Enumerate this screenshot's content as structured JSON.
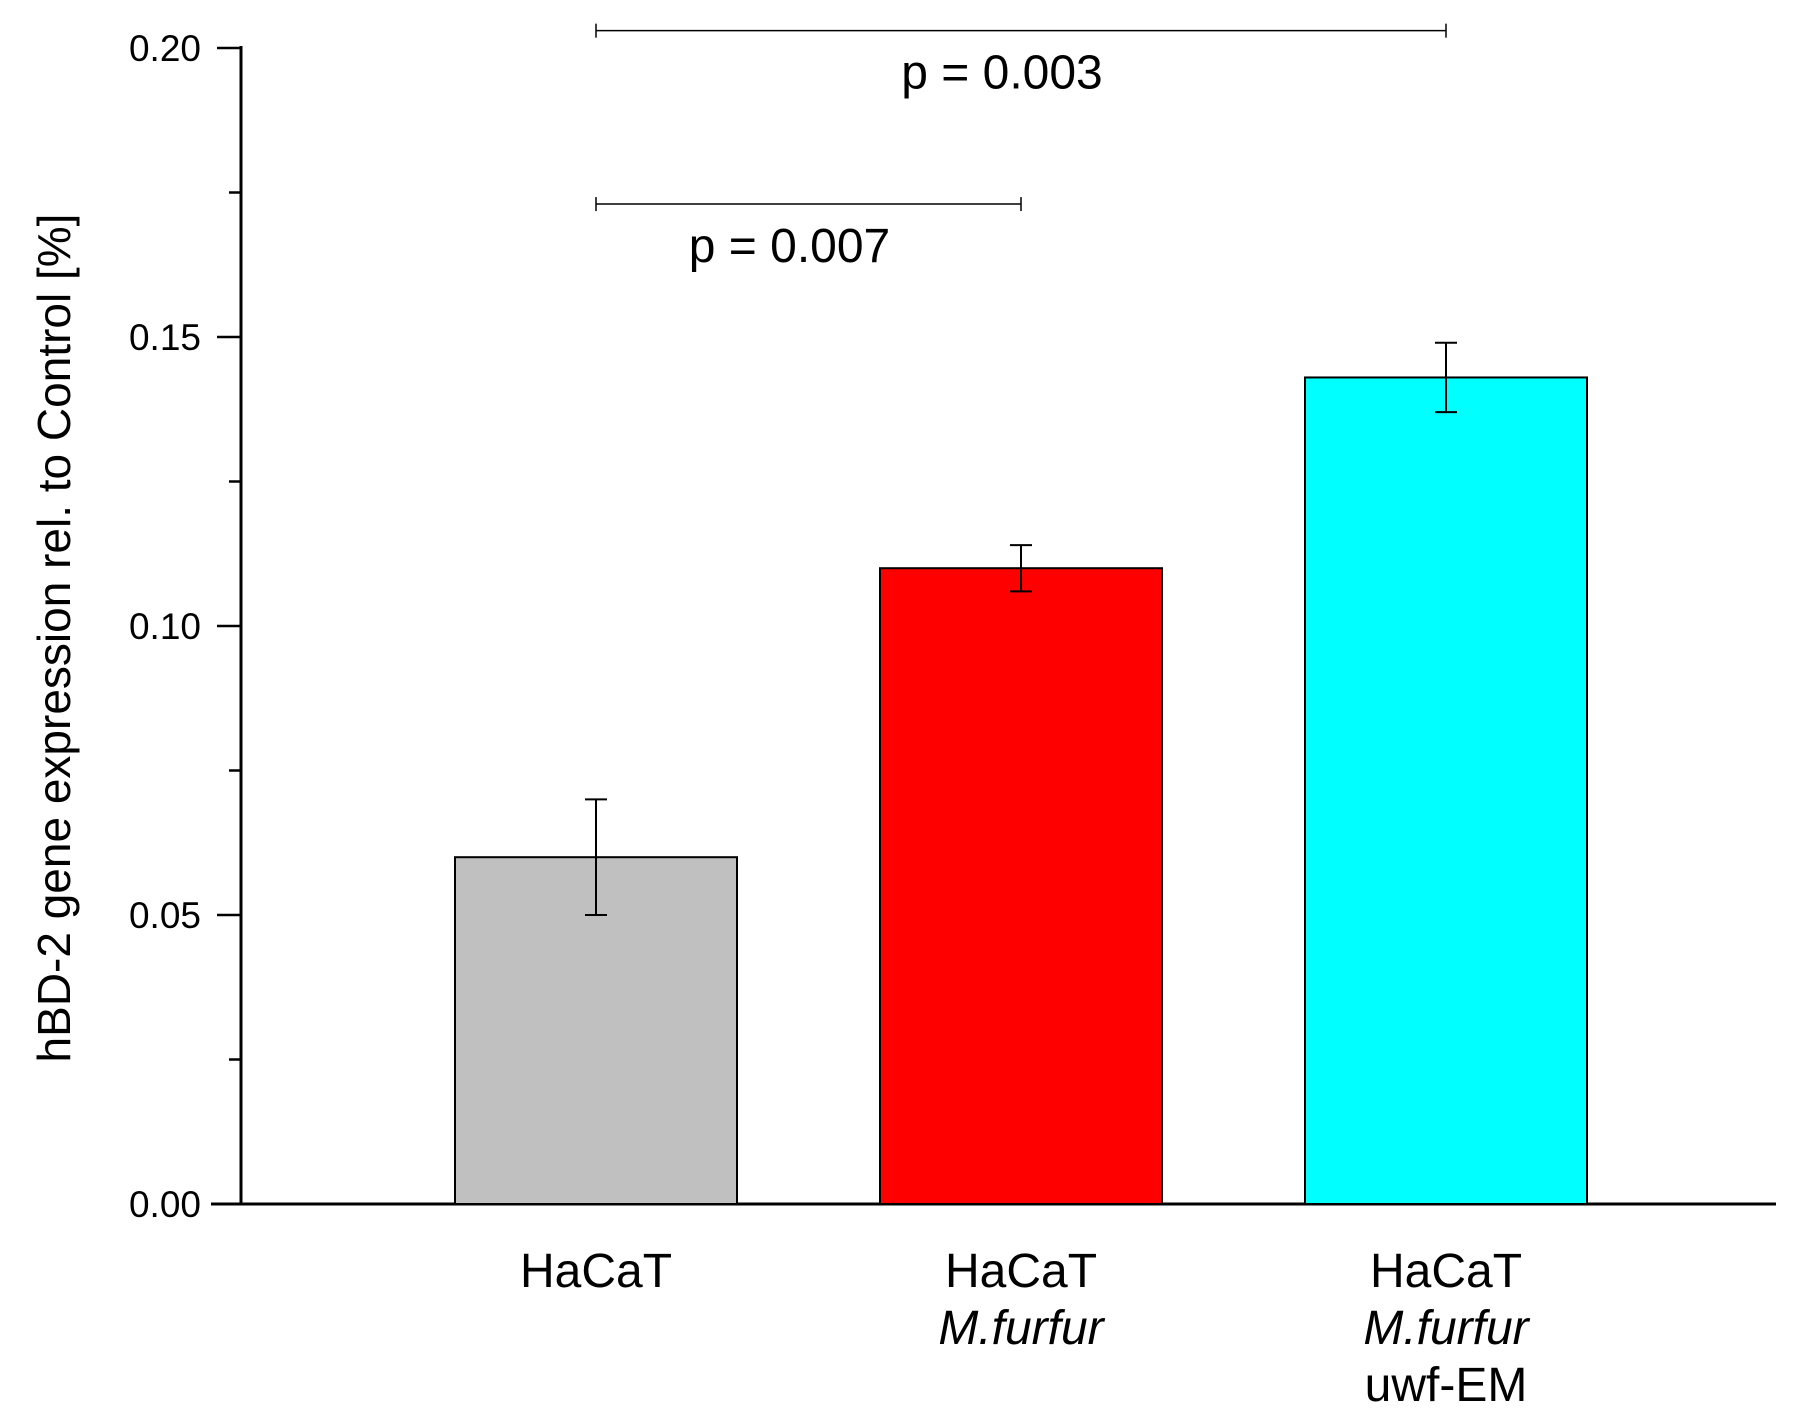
{
  "chart_data": {
    "type": "bar",
    "title": "",
    "xlabel": "",
    "ylabel": "hBD-2 gene expression rel. to Control [%]",
    "ylim": [
      0,
      0.2
    ],
    "yticks": [
      "0.00",
      "0.05",
      "0.10",
      "0.15",
      "0.20"
    ],
    "grid": false,
    "categories": [
      {
        "lines": [
          "HaCaT"
        ],
        "italic": [
          false
        ]
      },
      {
        "lines": [
          "HaCaT",
          "M.furfur"
        ],
        "italic": [
          false,
          true
        ]
      },
      {
        "lines": [
          "HaCaT",
          "M.furfur",
          "uwf-EM"
        ],
        "italic": [
          false,
          true,
          false
        ]
      }
    ],
    "values": [
      0.06,
      0.11,
      0.143
    ],
    "errors": [
      0.01,
      0.004,
      0.006
    ],
    "colors": [
      "#c0c0c0",
      "#ff0000",
      "#00ffff"
    ],
    "significance": [
      {
        "from": 0,
        "to": 1,
        "level": 0.173,
        "label": "p = 0.007"
      },
      {
        "from": 0,
        "to": 2,
        "level": 0.203,
        "label": "p = 0.003"
      }
    ]
  }
}
